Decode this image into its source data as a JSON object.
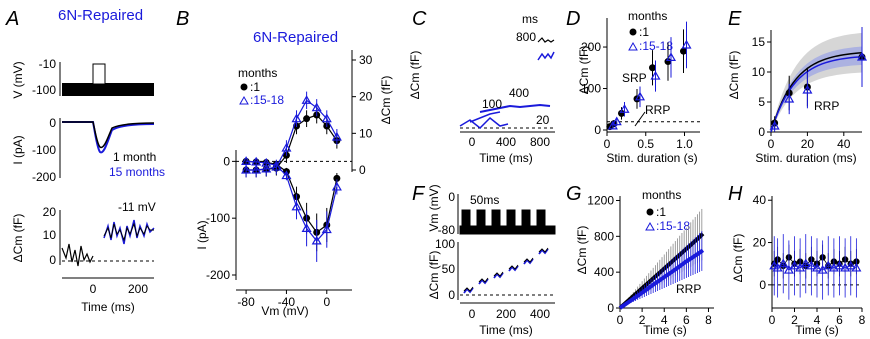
{
  "colors": {
    "black": "#000000",
    "blue": "#1a1adb",
    "shade_gray": "#bbbbbb",
    "shade_blue": "#9aa3e6"
  },
  "panels": {
    "A": {
      "letter": "A",
      "title": "6N-Repaired",
      "v_ylabel": "V (mV)",
      "v_ticks": [
        "-10",
        "-100"
      ],
      "i_ylabel": "I (pA)",
      "i_ticks": [
        "0",
        "-100",
        "-200"
      ],
      "i_legend": [
        "1 month",
        "15 months"
      ],
      "c_ylabel": "ΔCm (fF)",
      "c_ticks": [
        "20",
        "10",
        "0"
      ],
      "c_annotation": "-11 mV",
      "xlabel": "Time (ms)",
      "x_ticks": [
        "0",
        "200"
      ]
    },
    "B": {
      "letter": "B",
      "title": "6N-Repaired",
      "legend_title": "months",
      "legend_items": [
        ":1",
        ":15-18"
      ],
      "ylabel_left": "I (pA)",
      "ylabel_right": "ΔCm (fF)",
      "left_ticks": [
        "0",
        "-100",
        "-200"
      ],
      "right_ticks": [
        "30",
        "20",
        "10",
        "0"
      ],
      "xlabel": "Vm (mV)",
      "x_ticks": [
        "-80",
        "-40",
        "0"
      ]
    },
    "C": {
      "letter": "C",
      "ylabel": "ΔCm (fF)",
      "xlabel": "Time (ms)",
      "x_ticks": [
        "0",
        "400",
        "800"
      ],
      "unit": "ms",
      "trace_labels": [
        "800",
        "400",
        "100",
        "20"
      ]
    },
    "D": {
      "letter": "D",
      "legend_title": "months",
      "legend_items": [
        ":1",
        ":15-18"
      ],
      "ylabel": "ΔCm (fF)",
      "y_ticks": [
        "200",
        "100",
        "0"
      ],
      "xlabel": "Stim. duration (s)",
      "x_ticks": [
        "0",
        "0.5",
        "1.0"
      ],
      "labels": [
        "SRP",
        "RRP"
      ]
    },
    "E": {
      "letter": "E",
      "ylabel": "ΔCm (fF)",
      "y_ticks": [
        "15",
        "10",
        "5",
        "0"
      ],
      "xlabel": "Stim. duration (ms)",
      "x_ticks": [
        "0",
        "20",
        "40"
      ],
      "label": "RRP"
    },
    "F": {
      "letter": "F",
      "v_ylabel": "Vm (mV)",
      "v_ticks": [
        "0",
        "-80"
      ],
      "annotation": "50ms",
      "c_ylabel": "ΔCm (fF)",
      "c_ticks": [
        "100",
        "50",
        "0"
      ],
      "xlabel": "Time (ms)",
      "x_ticks": [
        "0",
        "200",
        "400"
      ]
    },
    "G": {
      "letter": "G",
      "legend_title": "months",
      "legend_items": [
        ":1",
        ":15-18"
      ],
      "ylabel": "ΔCm (fF)",
      "y_ticks": [
        "1200",
        "800",
        "400",
        "0"
      ],
      "xlabel": "Time (s)",
      "x_ticks": [
        "0",
        "2",
        "4",
        "6",
        "8"
      ],
      "label": "RRP"
    },
    "H": {
      "letter": "H",
      "ylabel": "ΔCm (fF)",
      "y_ticks": [
        "40",
        "20",
        "0"
      ],
      "xlabel": "Time (s)",
      "x_ticks": [
        "0",
        "2",
        "4",
        "6",
        "8"
      ]
    }
  },
  "chart_data": [
    {
      "panel": "B",
      "type": "line",
      "xlim": [
        -90,
        25
      ],
      "ylim_left": [
        -200,
        20
      ],
      "ylim_right": [
        0,
        30
      ],
      "x": [
        -80,
        -70,
        -60,
        -50,
        -40,
        -30,
        -20,
        -10,
        0,
        10
      ],
      "series": [
        {
          "name": ":1",
          "axis": "left",
          "values": [
            0,
            -1,
            -2,
            -5,
            -18,
            -62,
            -100,
            -125,
            -112,
            -30
          ]
        },
        {
          "name": ":15-18",
          "axis": "left",
          "values": [
            0,
            -1,
            -3,
            -7,
            -25,
            -80,
            -118,
            -140,
            -120,
            -45
          ]
        },
        {
          "name": ":1",
          "axis": "right",
          "values": [
            0,
            0,
            0.2,
            0.5,
            4,
            12,
            14,
            15,
            12,
            8
          ]
        },
        {
          "name": ":15-18",
          "axis": "right",
          "values": [
            0,
            0,
            0.3,
            0.8,
            6,
            14,
            19,
            17,
            14,
            9
          ]
        }
      ]
    },
    {
      "panel": "D",
      "type": "scatter",
      "xlim": [
        0,
        1.2
      ],
      "ylim": [
        0,
        270
      ],
      "x": [
        0.05,
        0.1,
        0.2,
        0.4,
        0.6,
        0.8,
        1.0
      ],
      "series": [
        {
          "name": ":1",
          "values": [
            8,
            15,
            40,
            75,
            150,
            165,
            190
          ]
        },
        {
          "name": ":15-18",
          "values": [
            10,
            20,
            50,
            80,
            130,
            175,
            205
          ]
        }
      ]
    },
    {
      "panel": "E",
      "type": "line",
      "xlim": [
        0,
        50
      ],
      "ylim": [
        0,
        17
      ],
      "x": [
        2,
        10,
        20,
        50
      ],
      "series": [
        {
          "name": ":1",
          "values": [
            1.5,
            6.5,
            7.5,
            12.5
          ]
        },
        {
          "name": ":15-18",
          "values": [
            1,
            5.5,
            7,
            12.5
          ]
        }
      ]
    },
    {
      "panel": "G",
      "type": "line",
      "xlim": [
        0,
        8.5
      ],
      "ylim": [
        0,
        1250
      ],
      "x": [
        0,
        1,
        2,
        3,
        4,
        5,
        6,
        7,
        7.5
      ],
      "series": [
        {
          "name": ":1",
          "values": [
            0,
            110,
            220,
            330,
            440,
            550,
            660,
            770,
            830
          ]
        },
        {
          "name": ":15-18",
          "values": [
            0,
            85,
            170,
            260,
            345,
            430,
            520,
            600,
            645
          ]
        }
      ]
    },
    {
      "panel": "H",
      "type": "scatter",
      "xlim": [
        0,
        8
      ],
      "ylim": [
        -10,
        42
      ],
      "x": [
        0.2,
        0.5,
        1,
        1.5,
        2,
        2.5,
        3,
        3.5,
        4,
        4.5,
        5,
        5.5,
        6,
        6.5,
        7,
        7.5
      ],
      "series": [
        {
          "name": ":1",
          "values": [
            10,
            12,
            9,
            13,
            10,
            11,
            9,
            12,
            10,
            13,
            9,
            11,
            10,
            12,
            10,
            11
          ]
        },
        {
          "name": ":15-18",
          "values": [
            9,
            8,
            10,
            7,
            9,
            8,
            10,
            9,
            8,
            7,
            9,
            8,
            9,
            8,
            9,
            8
          ]
        }
      ]
    }
  ]
}
